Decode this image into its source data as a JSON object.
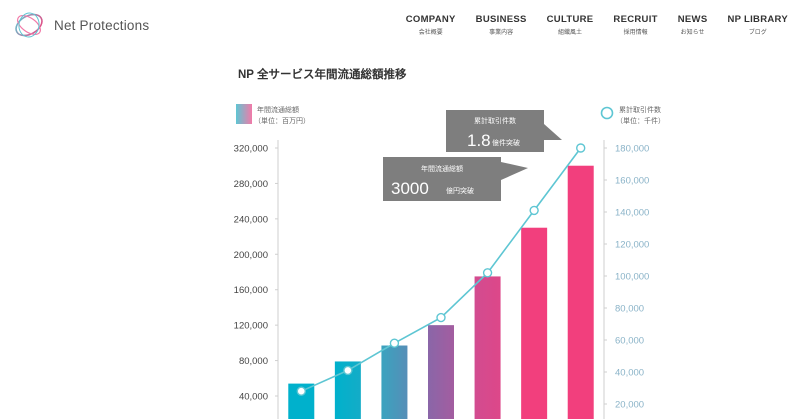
{
  "header": {
    "logo_text": "Net Protections",
    "nav": [
      {
        "label": "COMPANY",
        "sub": "会社概要"
      },
      {
        "label": "BUSINESS",
        "sub": "事業内容"
      },
      {
        "label": "CULTURE",
        "sub": "組織風土"
      },
      {
        "label": "RECRUIT",
        "sub": "採用情報"
      },
      {
        "label": "NEWS",
        "sub": "お知らせ"
      },
      {
        "label": "NP LIBRARY",
        "sub": "ブログ"
      }
    ]
  },
  "colors": {
    "bar_cyan": "#00b1cc",
    "bar_purple": "#8a66a8",
    "bar_pink": "#f23f7d",
    "line": "#5ec6d3",
    "callout": "#7e7e7e",
    "right_axis": "#8ab3c8"
  },
  "chart_data": {
    "type": "bar",
    "title": "NP 全サービス年間流通総額推移",
    "legend_left": {
      "name": "年間流通総額",
      "unit": "（単位：百万円）"
    },
    "legend_right": {
      "name": "累計取引件数",
      "unit": "（単位：千件）"
    },
    "left_axis_ticks": [
      40000,
      80000,
      120000,
      160000,
      200000,
      240000,
      280000,
      320000
    ],
    "right_axis_ticks": [
      20000,
      40000,
      60000,
      80000,
      100000,
      120000,
      140000,
      160000,
      180000
    ],
    "left_axis_labels": [
      "40,000",
      "80,000",
      "120,000",
      "160,000",
      "200,000",
      "240,000",
      "280,000",
      "320,000"
    ],
    "right_axis_labels": [
      "20,000",
      "40,000",
      "60,000",
      "80,000",
      "100,000",
      "120,000",
      "140,000",
      "160,000",
      "180,000"
    ],
    "series": [
      {
        "name": "年間流通総額",
        "kind": "bar",
        "values": [
          54000,
          79000,
          97000,
          120000,
          175000,
          230000,
          300000
        ]
      },
      {
        "name": "累計取引件数",
        "kind": "line",
        "values": [
          28000,
          41000,
          58000,
          74000,
          102000,
          141000,
          180000
        ]
      }
    ],
    "callouts": [
      {
        "label": "累計取引件数",
        "value": "1.8",
        "unit": "億件突破"
      },
      {
        "label": "年間流通総額",
        "value": "3000",
        "unit": "億円突破"
      }
    ]
  }
}
